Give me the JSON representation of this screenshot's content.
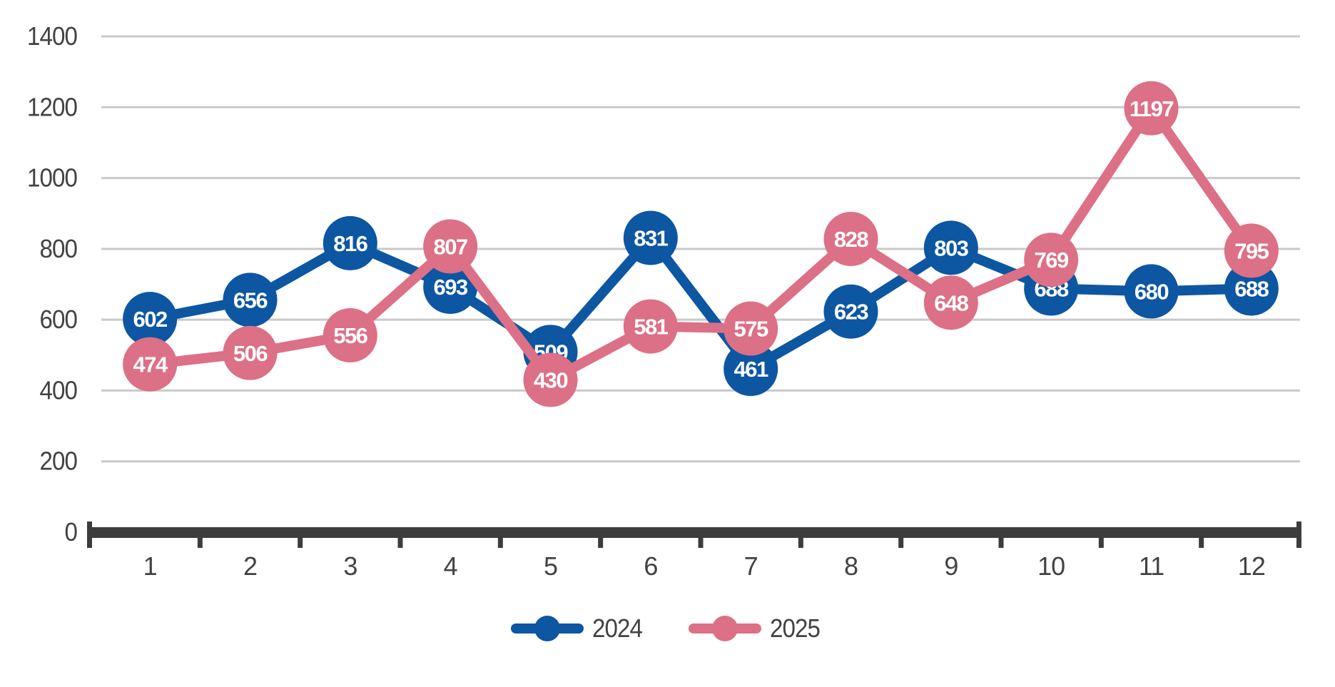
{
  "chart_data": {
    "type": "line",
    "title": "",
    "xlabel": "",
    "ylabel": "",
    "categories": [
      "1",
      "2",
      "3",
      "4",
      "5",
      "6",
      "7",
      "8",
      "9",
      "10",
      "11",
      "12"
    ],
    "series": [
      {
        "name": "2024",
        "color": "#0d56a2",
        "values": [
          602,
          656,
          816,
          693,
          509,
          831,
          461,
          623,
          803,
          688,
          680,
          688
        ]
      },
      {
        "name": "2025",
        "color": "#dc7086",
        "values": [
          474,
          506,
          556,
          807,
          430,
          581,
          575,
          828,
          648,
          769,
          1197,
          795
        ]
      }
    ],
    "ylim": [
      0,
      1400
    ],
    "ytick_step": 200,
    "ytick_labels": [
      "0",
      "200",
      "400",
      "600",
      "800",
      "1000",
      "1200",
      "1400"
    ],
    "grid": true,
    "data_labels": true,
    "legend_position": "bottom"
  },
  "legend": {
    "items": [
      {
        "label": "2024"
      },
      {
        "label": "2025"
      }
    ]
  },
  "colors": {
    "series_2024": "#0d56a2",
    "series_2025": "#dc7086",
    "gridline": "#c9c9c9",
    "axis": "#3c3c3c",
    "tick_text": "#424242",
    "data_label_text": "#ffffff",
    "background": "#ffffff"
  }
}
